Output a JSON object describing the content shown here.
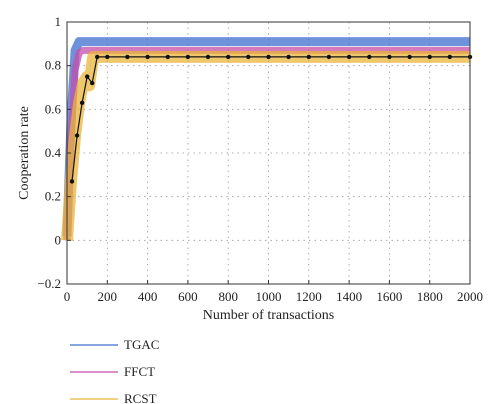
{
  "chart_data": {
    "type": "line",
    "xlabel": "Number of transactions",
    "ylabel": "Cooperation rate",
    "xlim": [
      0,
      2000
    ],
    "ylim": [
      -0.2,
      1
    ],
    "xticks": [
      "0",
      "200",
      "400",
      "600",
      "800",
      "1000",
      "1200",
      "1400",
      "1600",
      "1800",
      "2000"
    ],
    "yticks": [
      "-0.2",
      "0",
      "0.2",
      "0.4",
      "0.6",
      "0.8",
      "1"
    ],
    "grid": true,
    "legend_position": "bottom-left, outside plot",
    "series": [
      {
        "name": "TGAC",
        "color": "#3f6fcf",
        "x": [
          0,
          20,
          40,
          60,
          80,
          100,
          150,
          2000
        ],
        "y": [
          0.02,
          0.55,
          0.87,
          0.91,
          0.91,
          0.91,
          0.91,
          0.91
        ]
      },
      {
        "name": "FFCT",
        "color": "#c44ea8",
        "x": [
          0,
          20,
          40,
          60,
          80,
          100,
          150,
          2000
        ],
        "y": [
          0.0,
          0.45,
          0.78,
          0.86,
          0.87,
          0.87,
          0.87,
          0.87
        ]
      },
      {
        "name": "RCST",
        "color": "#e8b53a",
        "x": [
          0,
          20,
          40,
          60,
          80,
          100,
          110,
          130,
          2000
        ],
        "y": [
          0.0,
          0.27,
          0.48,
          0.63,
          0.72,
          0.75,
          0.71,
          0.84,
          0.84
        ]
      }
    ],
    "marker_line": {
      "color": "#111111",
      "x": [
        25,
        50,
        75,
        100,
        125,
        150,
        200,
        300,
        400,
        500,
        600,
        700,
        800,
        900,
        1000,
        1100,
        1200,
        1300,
        1400,
        1500,
        1600,
        1700,
        1800,
        1900,
        2000
      ],
      "y": [
        0.27,
        0.48,
        0.63,
        0.75,
        0.72,
        0.84,
        0.84,
        0.84,
        0.84,
        0.84,
        0.84,
        0.84,
        0.84,
        0.84,
        0.84,
        0.84,
        0.84,
        0.84,
        0.84,
        0.84,
        0.84,
        0.84,
        0.84,
        0.84,
        0.84
      ]
    }
  }
}
